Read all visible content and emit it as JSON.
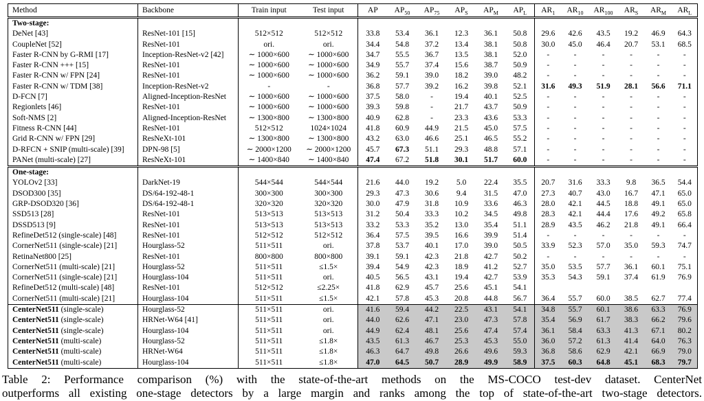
{
  "colors": {
    "highlight_row": "#c9c9c9"
  },
  "caption": {
    "line1": "Table 2: Performance comparison (%) with the state-of-the-art methods on the MS-COCO test-dev dataset. CenterNet",
    "line2": "outperforms all existing one-stage detectors by a large margin and ranks among the top of state-of-the-art two-stage detectors."
  },
  "table": {
    "headers": [
      {
        "text": "Method",
        "sub": ""
      },
      {
        "text": "Backbone",
        "sub": ""
      },
      {
        "text": "Train input",
        "sub": ""
      },
      {
        "text": "Test input",
        "sub": ""
      },
      {
        "text": "AP",
        "sub": ""
      },
      {
        "text": "AP",
        "sub": "50"
      },
      {
        "text": "AP",
        "sub": "75"
      },
      {
        "text": "AP",
        "sub": "S"
      },
      {
        "text": "AP",
        "sub": "M"
      },
      {
        "text": "AP",
        "sub": "L"
      },
      {
        "text": "AR",
        "sub": "1"
      },
      {
        "text": "AR",
        "sub": "10"
      },
      {
        "text": "AR",
        "sub": "100"
      },
      {
        "text": "AR",
        "sub": "S"
      },
      {
        "text": "AR",
        "sub": "M"
      },
      {
        "text": "AR",
        "sub": "L"
      }
    ],
    "sections": [
      {
        "label": "Two-stage:",
        "highlight": false,
        "rows": [
          {
            "method": "DeNet [43]",
            "method_bold": "",
            "backbone": "ResNet-101 [15]",
            "train": "512×512",
            "test": "512×512",
            "values": [
              "33.8",
              "53.4",
              "36.1",
              "12.3",
              "36.1",
              "50.8",
              "29.6",
              "42.6",
              "43.5",
              "19.2",
              "46.9",
              "64.3"
            ],
            "bold": []
          },
          {
            "method": "CoupleNet [52]",
            "method_bold": "",
            "backbone": "ResNet-101",
            "train": "ori.",
            "test": "ori.",
            "values": [
              "34.4",
              "54.8",
              "37.2",
              "13.4",
              "38.1",
              "50.8",
              "30.0",
              "45.0",
              "46.4",
              "20.7",
              "53.1",
              "68.5"
            ],
            "bold": []
          },
          {
            "method": "Faster R-CNN by G-RMI [17]",
            "method_bold": "",
            "backbone": "Inception-ResNet-v2 [42]",
            "train": "∼ 1000×600",
            "test": "∼ 1000×600",
            "values": [
              "34.7",
              "55.5",
              "36.7",
              "13.5",
              "38.1",
              "52.0",
              "-",
              "-",
              "-",
              "-",
              "-",
              "-"
            ],
            "bold": []
          },
          {
            "method": "Faster R-CNN +++ [15]",
            "method_bold": "",
            "backbone": "ResNet-101",
            "train": "∼ 1000×600",
            "test": "∼ 1000×600",
            "values": [
              "34.9",
              "55.7",
              "37.4",
              "15.6",
              "38.7",
              "50.9",
              "-",
              "-",
              "-",
              "-",
              "-",
              "-"
            ],
            "bold": []
          },
          {
            "method": "Faster R-CNN w/ FPN [24]",
            "method_bold": "",
            "backbone": "ResNet-101",
            "train": "∼ 1000×600",
            "test": "∼ 1000×600",
            "values": [
              "36.2",
              "59.1",
              "39.0",
              "18.2",
              "39.0",
              "48.2",
              "-",
              "-",
              "-",
              "-",
              "-",
              "-"
            ],
            "bold": []
          },
          {
            "method": "Faster R-CNN w/ TDM [38]",
            "method_bold": "",
            "backbone": "Inception-ResNet-v2",
            "train": "-",
            "test": "-",
            "values": [
              "36.8",
              "57.7",
              "39.2",
              "16.2",
              "39.8",
              "52.1",
              "31.6",
              "49.3",
              "51.9",
              "28.1",
              "56.6",
              "71.1"
            ],
            "bold": [
              6,
              7,
              8,
              9,
              10,
              11
            ]
          },
          {
            "method": "D-FCN [7]",
            "method_bold": "",
            "backbone": "Aligned-Inception-ResNet",
            "train": "∼ 1000×600",
            "test": "∼ 1000×600",
            "values": [
              "37.5",
              "58.0",
              "-",
              "19.4",
              "40.1",
              "52.5",
              "-",
              "-",
              "-",
              "-",
              "-",
              "-"
            ],
            "bold": []
          },
          {
            "method": "Regionlets [46]",
            "method_bold": "",
            "backbone": "ResNet-101",
            "train": "∼ 1000×600",
            "test": "∼ 1000×600",
            "values": [
              "39.3",
              "59.8",
              "-",
              "21.7",
              "43.7",
              "50.9",
              "-",
              "-",
              "-",
              "-",
              "-",
              "-"
            ],
            "bold": []
          },
          {
            "method": "Soft-NMS [2]",
            "method_bold": "",
            "backbone": "Aligned-Inception-ResNet",
            "train": "∼ 1300×800",
            "test": "∼ 1300×800",
            "values": [
              "40.9",
              "62.8",
              "-",
              "23.3",
              "43.6",
              "53.3",
              "-",
              "-",
              "-",
              "-",
              "-",
              "-"
            ],
            "bold": []
          },
          {
            "method": "Fitness R-CNN [44]",
            "method_bold": "",
            "backbone": "ResNet-101",
            "train": "512×512",
            "test": "1024×1024",
            "values": [
              "41.8",
              "60.9",
              "44.9",
              "21.5",
              "45.0",
              "57.5",
              "-",
              "-",
              "-",
              "-",
              "-",
              "-"
            ],
            "bold": []
          },
          {
            "method": "Grid R-CNN w/ FPN [29]",
            "method_bold": "",
            "backbone": "ResNeXt-101",
            "train": "∼ 1300×800",
            "test": "∼ 1300×800",
            "values": [
              "43.2",
              "63.0",
              "46.6",
              "25.1",
              "46.5",
              "55.2",
              "-",
              "-",
              "-",
              "-",
              "-",
              "-"
            ],
            "bold": []
          },
          {
            "method": "D-RFCN + SNIP (multi-scale) [39]",
            "method_bold": "",
            "backbone": "DPN-98 [5]",
            "train": "∼ 2000×1200",
            "test": "∼ 2000×1200",
            "values": [
              "45.7",
              "67.3",
              "51.1",
              "29.3",
              "48.8",
              "57.1",
              "-",
              "-",
              "-",
              "-",
              "-",
              "-"
            ],
            "bold": [
              1
            ]
          },
          {
            "method": "PANet (multi-scale) [27]",
            "method_bold": "",
            "backbone": "ResNeXt-101",
            "train": "∼ 1400×840",
            "test": "∼ 1400×840",
            "values": [
              "47.4",
              "67.2",
              "51.8",
              "30.1",
              "51.7",
              "60.0",
              "-",
              "-",
              "-",
              "-",
              "-",
              "-"
            ],
            "bold": [
              0,
              2,
              3,
              4,
              5
            ]
          }
        ]
      },
      {
        "label": "One-stage:",
        "highlight": false,
        "rows": [
          {
            "method": "YOLOv2 [33]",
            "method_bold": "",
            "backbone": "DarkNet-19",
            "train": "544×544",
            "test": "544×544",
            "values": [
              "21.6",
              "44.0",
              "19.2",
              "5.0",
              "22.4",
              "35.5",
              "20.7",
              "31.6",
              "33.3",
              "9.8",
              "36.5",
              "54.4"
            ],
            "bold": []
          },
          {
            "method": "DSOD300 [35]",
            "method_bold": "",
            "backbone": "DS/64-192-48-1",
            "train": "300×300",
            "test": "300×300",
            "values": [
              "29.3",
              "47.3",
              "30.6",
              "9.4",
              "31.5",
              "47.0",
              "27.3",
              "40.7",
              "43.0",
              "16.7",
              "47.1",
              "65.0"
            ],
            "bold": []
          },
          {
            "method": "GRP-DSOD320 [36]",
            "method_bold": "",
            "backbone": "DS/64-192-48-1",
            "train": "320×320",
            "test": "320×320",
            "values": [
              "30.0",
              "47.9",
              "31.8",
              "10.9",
              "33.6",
              "46.3",
              "28.0",
              "42.1",
              "44.5",
              "18.8",
              "49.1",
              "65.0"
            ],
            "bold": []
          },
          {
            "method": "SSD513 [28]",
            "method_bold": "",
            "backbone": "ResNet-101",
            "train": "513×513",
            "test": "513×513",
            "values": [
              "31.2",
              "50.4",
              "33.3",
              "10.2",
              "34.5",
              "49.8",
              "28.3",
              "42.1",
              "44.4",
              "17.6",
              "49.2",
              "65.8"
            ],
            "bold": []
          },
          {
            "method": "DSSD513 [9]",
            "method_bold": "",
            "backbone": "ResNet-101",
            "train": "513×513",
            "test": "513×513",
            "values": [
              "33.2",
              "53.3",
              "35.2",
              "13.0",
              "35.4",
              "51.1",
              "28.9",
              "43.5",
              "46.2",
              "21.8",
              "49.1",
              "66.4"
            ],
            "bold": []
          },
          {
            "method": "RefineDet512 (single-scale) [48]",
            "method_bold": "",
            "backbone": "ResNet-101",
            "train": "512×512",
            "test": "512×512",
            "values": [
              "36.4",
              "57.5",
              "39.5",
              "16.6",
              "39.9",
              "51.4",
              "-",
              "-",
              "-",
              "-",
              "-",
              "-"
            ],
            "bold": []
          },
          {
            "method": "CornerNet511 (single-scale) [21]",
            "method_bold": "",
            "backbone": "Hourglass-52",
            "train": "511×511",
            "test": "ori.",
            "values": [
              "37.8",
              "53.7",
              "40.1",
              "17.0",
              "39.0",
              "50.5",
              "33.9",
              "52.3",
              "57.0",
              "35.0",
              "59.3",
              "74.7"
            ],
            "bold": []
          },
          {
            "method": "RetinaNet800 [25]",
            "method_bold": "",
            "backbone": "ResNet-101",
            "train": "800×800",
            "test": "800×800",
            "values": [
              "39.1",
              "59.1",
              "42.3",
              "21.8",
              "42.7",
              "50.2",
              "-",
              "-",
              "-",
              "-",
              "-",
              "-"
            ],
            "bold": []
          },
          {
            "method": "CornerNet511 (multi-scale) [21]",
            "method_bold": "",
            "backbone": "Hourglass-52",
            "train": "511×511",
            "test": "≤1.5×",
            "values": [
              "39.4",
              "54.9",
              "42.3",
              "18.9",
              "41.2",
              "52.7",
              "35.0",
              "53.5",
              "57.7",
              "36.1",
              "60.1",
              "75.1"
            ],
            "bold": []
          },
          {
            "method": "CornerNet511 (single-scale) [21]",
            "method_bold": "",
            "backbone": "Hourglass-104",
            "train": "511×511",
            "test": "ori.",
            "values": [
              "40.5",
              "56.5",
              "43.1",
              "19.4",
              "42.7",
              "53.9",
              "35.3",
              "54.3",
              "59.1",
              "37.4",
              "61.9",
              "76.9"
            ],
            "bold": []
          },
          {
            "method": "RefineDet512 (multi-scale) [48]",
            "method_bold": "",
            "backbone": "ResNet-101",
            "train": "512×512",
            "test": "≤2.25×",
            "values": [
              "41.8",
              "62.9",
              "45.7",
              "25.6",
              "45.1",
              "54.1",
              "",
              "",
              "",
              "",
              "",
              ""
            ],
            "bold": []
          },
          {
            "method": "CornerNet511 (multi-scale) [21]",
            "method_bold": "",
            "backbone": "Hourglass-104",
            "train": "511×511",
            "test": "≤1.5×",
            "values": [
              "42.1",
              "57.8",
              "45.3",
              "20.8",
              "44.8",
              "56.7",
              "36.4",
              "55.7",
              "60.0",
              "38.5",
              "62.7",
              "77.4"
            ],
            "bold": []
          }
        ]
      },
      {
        "label": "",
        "highlight": true,
        "rows": [
          {
            "method": " (single-scale)",
            "method_bold": "CenterNet511",
            "backbone": "Hourglass-52",
            "train": "511×511",
            "test": "ori.",
            "values": [
              "41.6",
              "59.4",
              "44.2",
              "22.5",
              "43.1",
              "54.1",
              "34.8",
              "55.7",
              "60.1",
              "38.6",
              "63.3",
              "76.9"
            ],
            "bold": []
          },
          {
            "method": " (single-scale)",
            "method_bold": "CenterNet511",
            "backbone": "HRNet-W64 [41]",
            "train": "511×511",
            "test": "ori.",
            "values": [
              "44.0",
              "62.6",
              "47.1",
              "23.0",
              "47.3",
              "57.8",
              "35.4",
              "56.9",
              "61.7",
              "38.3",
              "66.2",
              "79.6"
            ],
            "bold": []
          },
          {
            "method": " (single-scale)",
            "method_bold": "CenterNet511",
            "backbone": "Hourglass-104",
            "train": "511×511",
            "test": "ori.",
            "values": [
              "44.9",
              "62.4",
              "48.1",
              "25.6",
              "47.4",
              "57.4",
              "36.1",
              "58.4",
              "63.3",
              "41.3",
              "67.1",
              "80.2"
            ],
            "bold": []
          },
          {
            "method": " (multi-scale)",
            "method_bold": "CenterNet511",
            "backbone": "Hourglass-52",
            "train": "511×511",
            "test": "≤1.8×",
            "values": [
              "43.5",
              "61.3",
              "46.7",
              "25.3",
              "45.3",
              "55.0",
              "36.0",
              "57.2",
              "61.3",
              "41.4",
              "64.0",
              "76.3"
            ],
            "bold": []
          },
          {
            "method": " (multi-scale)",
            "method_bold": "CenterNet511",
            "backbone": "HRNet-W64",
            "train": "511×511",
            "test": "≤1.8×",
            "values": [
              "46.3",
              "64.7",
              "49.8",
              "26.6",
              "49.6",
              "59.3",
              "36.8",
              "58.6",
              "62.9",
              "42.1",
              "66.9",
              "79.0"
            ],
            "bold": []
          },
          {
            "method": " (multi-scale)",
            "method_bold": "CenterNet511",
            "backbone": "Hourglass-104",
            "train": "511×511",
            "test": "≤1.8×",
            "values": [
              "47.0",
              "64.5",
              "50.7",
              "28.9",
              "49.9",
              "58.9",
              "37.5",
              "60.3",
              "64.8",
              "45.1",
              "68.3",
              "79.7"
            ],
            "bold": [
              0,
              1,
              2,
              3,
              4,
              5,
              6,
              7,
              8,
              9,
              10,
              11
            ]
          }
        ]
      }
    ]
  }
}
